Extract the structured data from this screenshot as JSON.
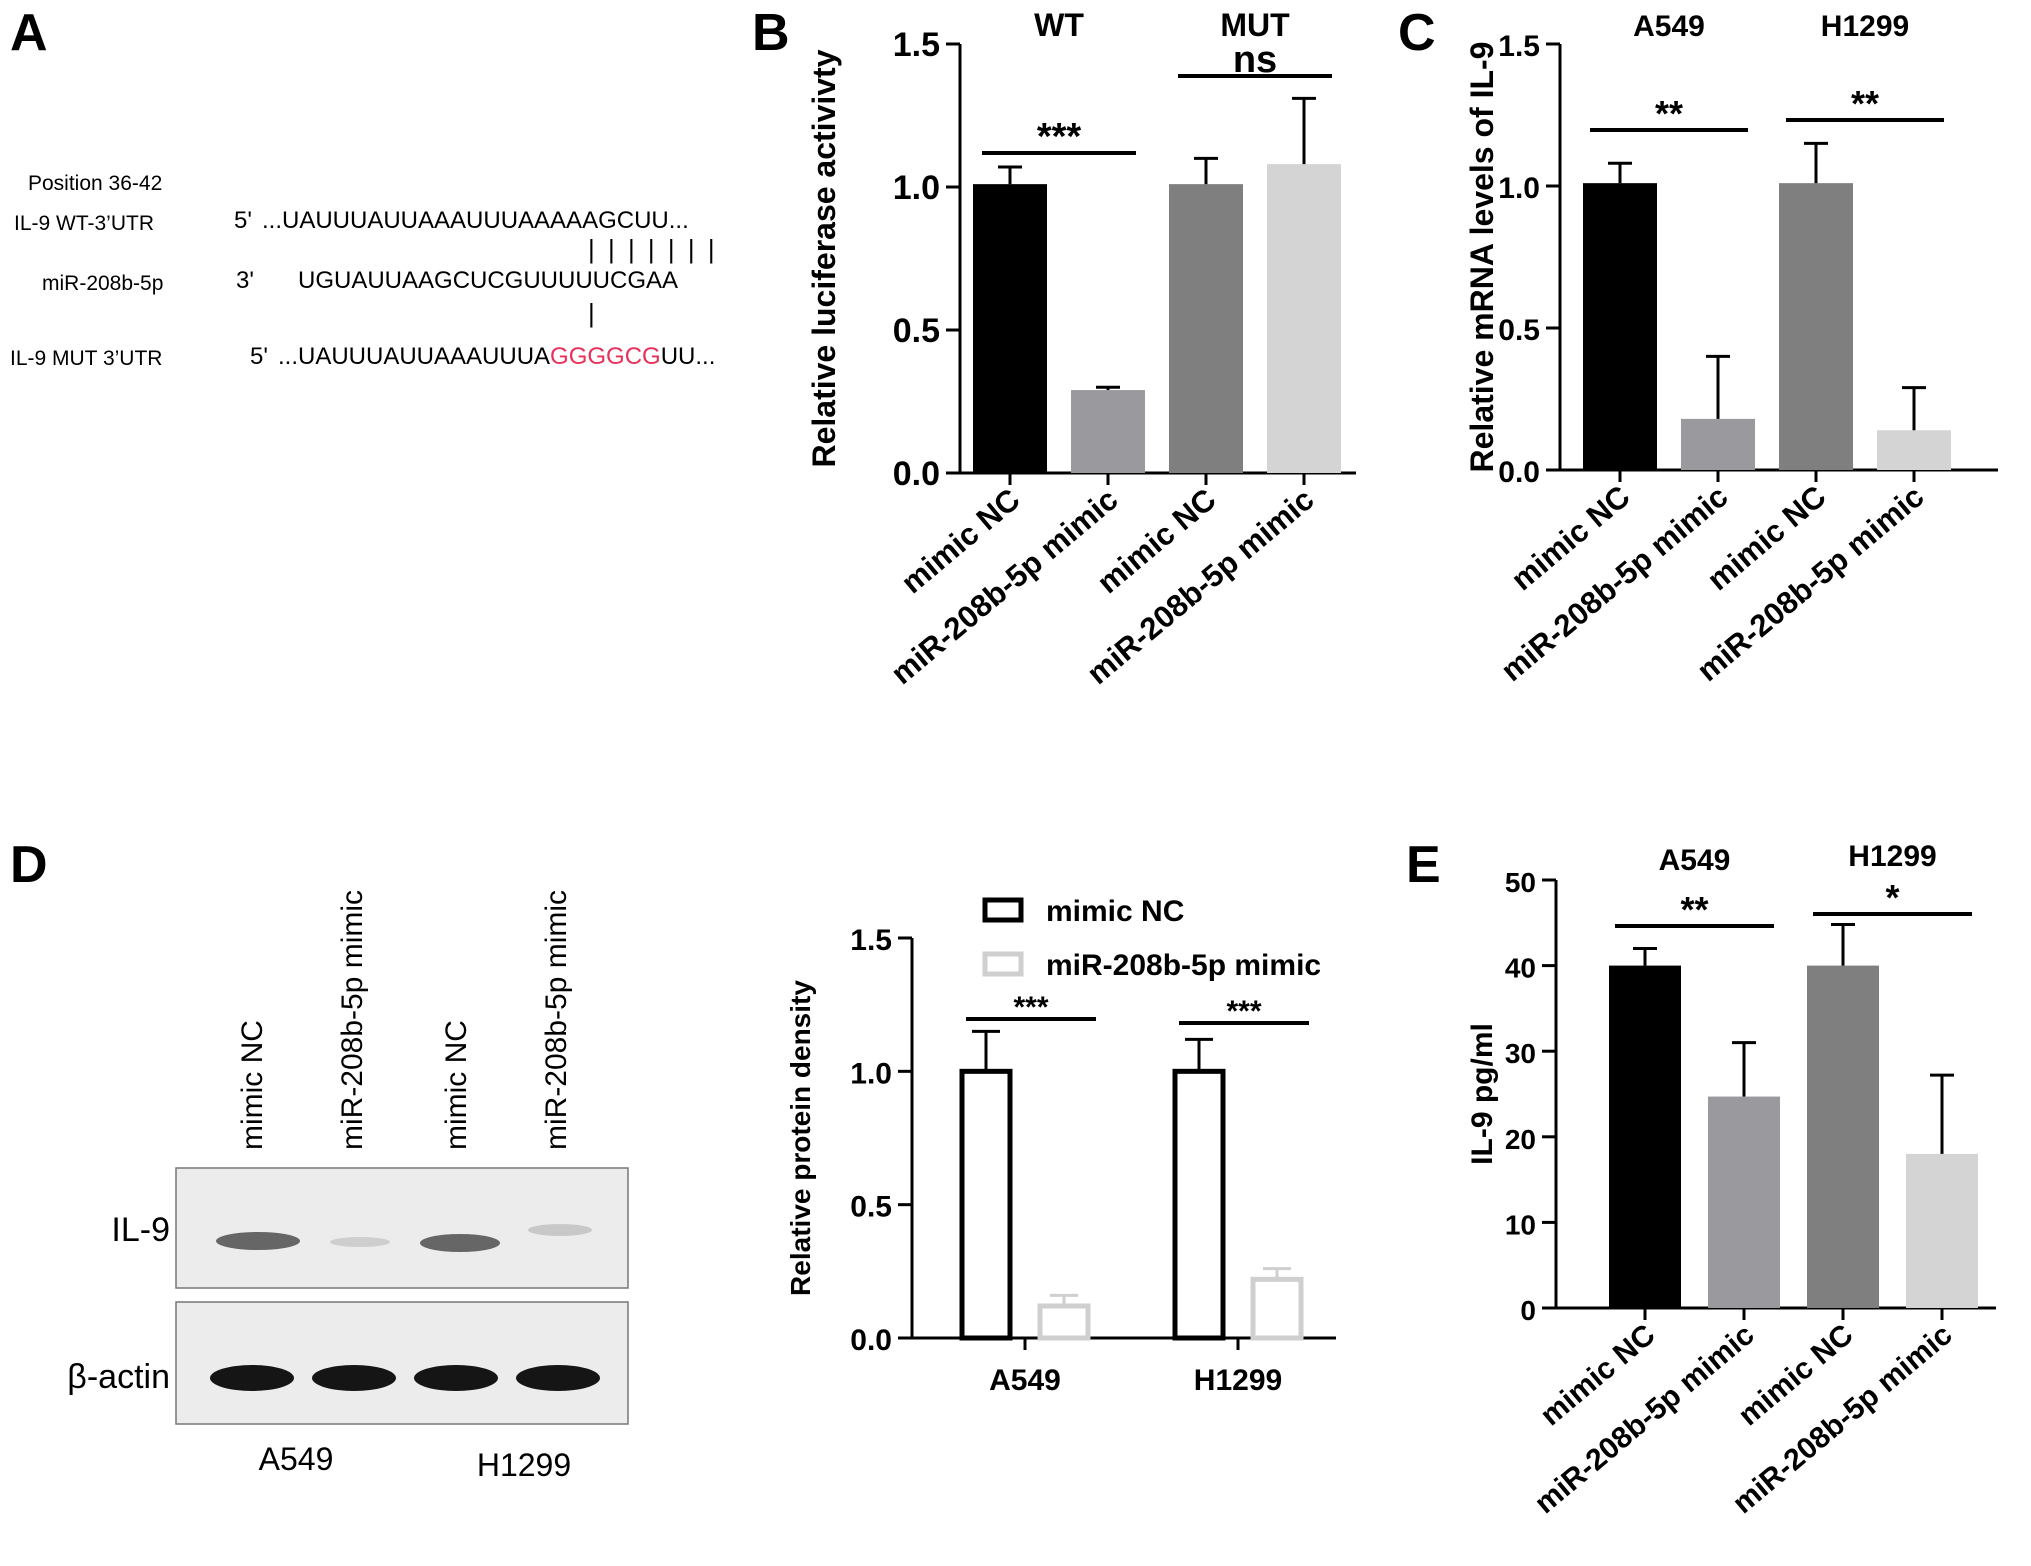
{
  "panel_labels": {
    "a": "A",
    "b": "B",
    "c": "C",
    "d": "D",
    "e": "E"
  },
  "sequence_panel": {
    "position": "Position 36-42",
    "rows": [
      {
        "label": "IL-9  WT-3’UTR",
        "end": "5'",
        "seq": "...UAUUUAUUAAAUUUAAAAAGCUU...",
        "highlight": ""
      },
      {
        "label": "miR-208b-5p",
        "end": "3'",
        "seq": "UGUAUUAAGCUCGUUUUUCGAA",
        "highlight": ""
      },
      {
        "label": "IL-9 MUT 3’UTR",
        "end": "5'",
        "seq_prefix": "...UAUUUAUUAAAUUUA",
        "highlight": "GGGGCG",
        "seq_suffix": "UU..."
      }
    ],
    "pair_marks_wt": "| | | | | | |",
    "pair_marks_mut": "|",
    "highlight_color": "#e8305a"
  },
  "western_blot": {
    "lane_labels": [
      "mimic NC",
      "miR-208b-5p mimic",
      "mimic NC",
      "miR-208b-5p mimic"
    ],
    "rows": [
      "IL-9",
      "β-actin"
    ],
    "cell_lines": [
      "A549",
      "H1299"
    ]
  },
  "chart_data": [
    {
      "panel": "B",
      "type": "bar",
      "ylabel": "Relative luciferase activivty",
      "ylim": [
        0,
        1.5
      ],
      "yticks": [
        "0.0",
        "0.5",
        "1.0",
        "1.5"
      ],
      "categories": [
        "mimic NC",
        "miR-208b-5p mimic",
        "mimic NC",
        "miR-208b-5p mimic"
      ],
      "values": [
        1.01,
        0.29,
        1.01,
        1.08
      ],
      "errors": [
        0.06,
        0.01,
        0.09,
        0.23
      ],
      "colors": [
        "#000000",
        "#9a9a9e",
        "#7f7f7f",
        "#d4d4d4"
      ],
      "group_labels": [
        "WT",
        "MUT"
      ],
      "significance": [
        "***",
        "ns"
      ]
    },
    {
      "panel": "C",
      "type": "bar",
      "ylabel": "Relative mRNA levels of IL-9",
      "ylim": [
        0,
        1.5
      ],
      "yticks": [
        "0.0",
        "0.5",
        "1.0",
        "1.5"
      ],
      "categories": [
        "mimic NC",
        "miR-208b-5p mimic",
        "mimic NC",
        "miR-208b-5p mimic"
      ],
      "values": [
        1.01,
        0.18,
        1.01,
        0.14
      ],
      "errors": [
        0.07,
        0.22,
        0.14,
        0.15
      ],
      "colors": [
        "#000000",
        "#9a9a9e",
        "#7f7f7f",
        "#d4d4d4"
      ],
      "group_labels": [
        "A549",
        "H1299"
      ],
      "significance": [
        "**",
        "**"
      ]
    },
    {
      "panel": "D",
      "type": "bar",
      "ylabel": "Relative protein density",
      "ylim": [
        0,
        1.5
      ],
      "yticks": [
        "0.0",
        "0.5",
        "1.0",
        "1.5"
      ],
      "categories": [
        "A549",
        "H1299"
      ],
      "series": [
        {
          "name": "mimic NC",
          "values": [
            1.0,
            1.0
          ],
          "errors": [
            0.15,
            0.12
          ],
          "color": "#000000"
        },
        {
          "name": "miR-208b-5p mimic",
          "values": [
            0.12,
            0.22
          ],
          "errors": [
            0.04,
            0.04
          ],
          "color": "#cfcfcf"
        }
      ],
      "significance": [
        "***",
        "***"
      ]
    },
    {
      "panel": "E",
      "type": "bar",
      "ylabel": "IL-9 pg/ml",
      "ylim": [
        0,
        50
      ],
      "yticks": [
        "0",
        "10",
        "20",
        "30",
        "40",
        "50"
      ],
      "categories": [
        "mimic NC",
        "miR-208b-5p mimic",
        "mimic NC",
        "miR-208b-5p mimic"
      ],
      "values": [
        40,
        24.7,
        40,
        18
      ],
      "errors": [
        2,
        6.3,
        4.8,
        9.2
      ],
      "colors": [
        "#000000",
        "#9a9a9e",
        "#7f7f7f",
        "#d4d4d4"
      ],
      "group_labels": [
        "A549",
        "H1299"
      ],
      "significance": [
        "**",
        "*"
      ]
    }
  ]
}
